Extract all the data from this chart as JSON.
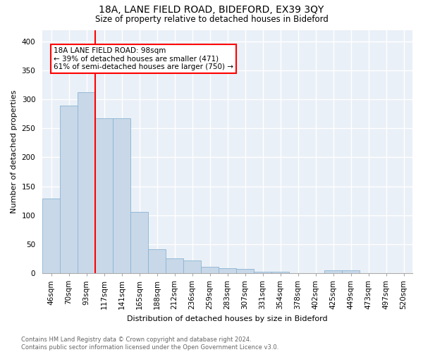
{
  "title1": "18A, LANE FIELD ROAD, BIDEFORD, EX39 3QY",
  "title2": "Size of property relative to detached houses in Bideford",
  "xlabel": "Distribution of detached houses by size in Bideford",
  "ylabel": "Number of detached properties",
  "footnote": "Contains HM Land Registry data © Crown copyright and database right 2024.\nContains public sector information licensed under the Open Government Licence v3.0.",
  "bar_labels": [
    "46sqm",
    "70sqm",
    "93sqm",
    "117sqm",
    "141sqm",
    "165sqm",
    "188sqm",
    "212sqm",
    "236sqm",
    "259sqm",
    "283sqm",
    "307sqm",
    "331sqm",
    "354sqm",
    "378sqm",
    "402sqm",
    "425sqm",
    "449sqm",
    "473sqm",
    "497sqm",
    "520sqm"
  ],
  "bar_values": [
    129,
    289,
    312,
    268,
    268,
    106,
    41,
    26,
    22,
    11,
    9,
    7,
    3,
    2,
    0,
    0,
    5,
    5,
    0,
    0,
    0
  ],
  "bar_color": "#c8d8e8",
  "bar_edge_color": "#8ab4d4",
  "property_line_label": "18A LANE FIELD ROAD: 98sqm",
  "annotation_line1": "← 39% of detached houses are smaller (471)",
  "annotation_line2": "61% of semi-detached houses are larger (750) →",
  "annotation_box_color": "white",
  "annotation_box_edge": "red",
  "vline_color": "red",
  "vline_x_index": 2,
  "ylim": [
    0,
    420
  ],
  "yticks": [
    0,
    50,
    100,
    150,
    200,
    250,
    300,
    350,
    400
  ],
  "background_color": "#eaf0f7",
  "grid_color": "white",
  "title1_fontsize": 10,
  "title2_fontsize": 8.5,
  "ylabel_fontsize": 8,
  "xlabel_fontsize": 8,
  "tick_fontsize": 7.5,
  "annot_fontsize": 7.5,
  "footnote_fontsize": 6,
  "footnote_color": "#666666"
}
